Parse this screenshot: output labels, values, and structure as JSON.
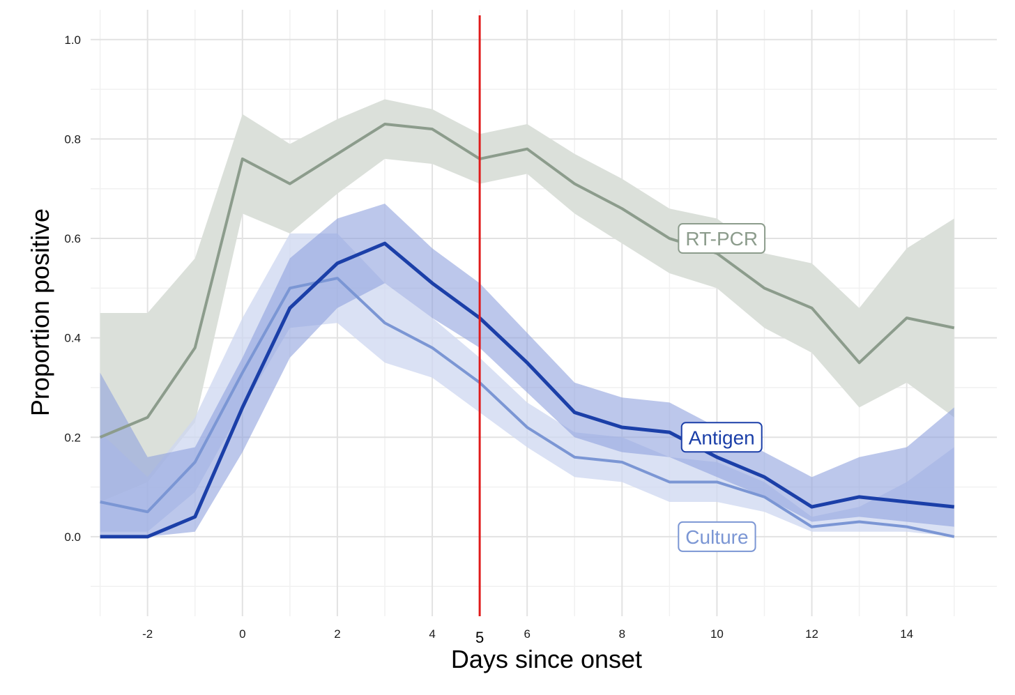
{
  "chart_data": {
    "type": "line",
    "title": "",
    "xlabel": "Days since onset",
    "ylabel": "Proportion positive",
    "xlim": [
      -3.2,
      15.9
    ],
    "ylim": [
      -0.16,
      1.06
    ],
    "x_ticks": [
      -2,
      0,
      2,
      4,
      6,
      8,
      10,
      12,
      14
    ],
    "x_tick_labels": [
      "-2",
      "0",
      "2",
      "4",
      "6",
      "8",
      "10",
      "12",
      "14"
    ],
    "y_ticks": [
      0.0,
      0.2,
      0.4,
      0.6,
      0.8,
      1.0
    ],
    "y_tick_labels": [
      "0.0",
      "0.2",
      "0.4",
      "0.6",
      "0.8",
      "1.0"
    ],
    "grid": true,
    "x": [
      -3,
      -2,
      -1,
      0,
      1,
      2,
      3,
      4,
      5,
      6,
      7,
      8,
      9,
      10,
      11,
      12,
      13,
      14,
      15
    ],
    "series": [
      {
        "name": "RT-PCR",
        "label": "RT-PCR",
        "color": "#8c9c8c",
        "band_color": "#dbe0da",
        "values": [
          0.2,
          0.24,
          0.38,
          0.76,
          0.71,
          0.77,
          0.83,
          0.82,
          0.76,
          0.78,
          0.71,
          0.66,
          0.6,
          0.57,
          0.5,
          0.46,
          0.35,
          0.44,
          0.42
        ],
        "lower": [
          0.07,
          0.11,
          0.23,
          0.65,
          0.61,
          0.69,
          0.76,
          0.75,
          0.71,
          0.73,
          0.65,
          0.59,
          0.53,
          0.5,
          0.42,
          0.37,
          0.26,
          0.31,
          0.24
        ],
        "upper": [
          0.45,
          0.45,
          0.56,
          0.85,
          0.79,
          0.84,
          0.88,
          0.86,
          0.81,
          0.83,
          0.77,
          0.72,
          0.66,
          0.64,
          0.57,
          0.55,
          0.46,
          0.58,
          0.64
        ]
      },
      {
        "name": "Culture",
        "label": "Culture",
        "color": "#7b96d4",
        "band_color": "#cdd7f0",
        "values": [
          0.07,
          0.05,
          0.15,
          0.33,
          0.5,
          0.52,
          0.43,
          0.38,
          0.31,
          0.22,
          0.16,
          0.15,
          0.11,
          0.11,
          0.08,
          0.02,
          0.03,
          0.02,
          0.0
        ],
        "lower": [
          0.01,
          0.01,
          0.09,
          0.26,
          0.42,
          0.43,
          0.35,
          0.32,
          0.25,
          0.18,
          0.12,
          0.11,
          0.07,
          0.07,
          0.05,
          0.01,
          0.01,
          0.01,
          0.0
        ],
        "upper": [
          0.21,
          0.12,
          0.24,
          0.44,
          0.61,
          0.61,
          0.51,
          0.44,
          0.36,
          0.27,
          0.21,
          0.2,
          0.16,
          0.15,
          0.11,
          0.04,
          0.06,
          0.11,
          0.18
        ]
      },
      {
        "name": "Antigen",
        "label": "Antigen",
        "color": "#1b3fa8",
        "band_color": "#8fa2dd",
        "values": [
          0.0,
          0.0,
          0.04,
          0.26,
          0.46,
          0.55,
          0.59,
          0.51,
          0.44,
          0.35,
          0.25,
          0.22,
          0.21,
          0.16,
          0.12,
          0.06,
          0.08,
          0.07,
          0.06
        ],
        "lower": [
          0.0,
          0.0,
          0.01,
          0.17,
          0.36,
          0.46,
          0.51,
          0.44,
          0.38,
          0.29,
          0.2,
          0.17,
          0.16,
          0.12,
          0.08,
          0.03,
          0.04,
          0.03,
          0.02
        ],
        "upper": [
          0.33,
          0.16,
          0.18,
          0.36,
          0.56,
          0.64,
          0.67,
          0.58,
          0.51,
          0.41,
          0.31,
          0.28,
          0.27,
          0.22,
          0.17,
          0.12,
          0.16,
          0.18,
          0.26
        ]
      }
    ],
    "vline": {
      "x": 5,
      "label": "5",
      "color": "#e01b1b"
    }
  }
}
